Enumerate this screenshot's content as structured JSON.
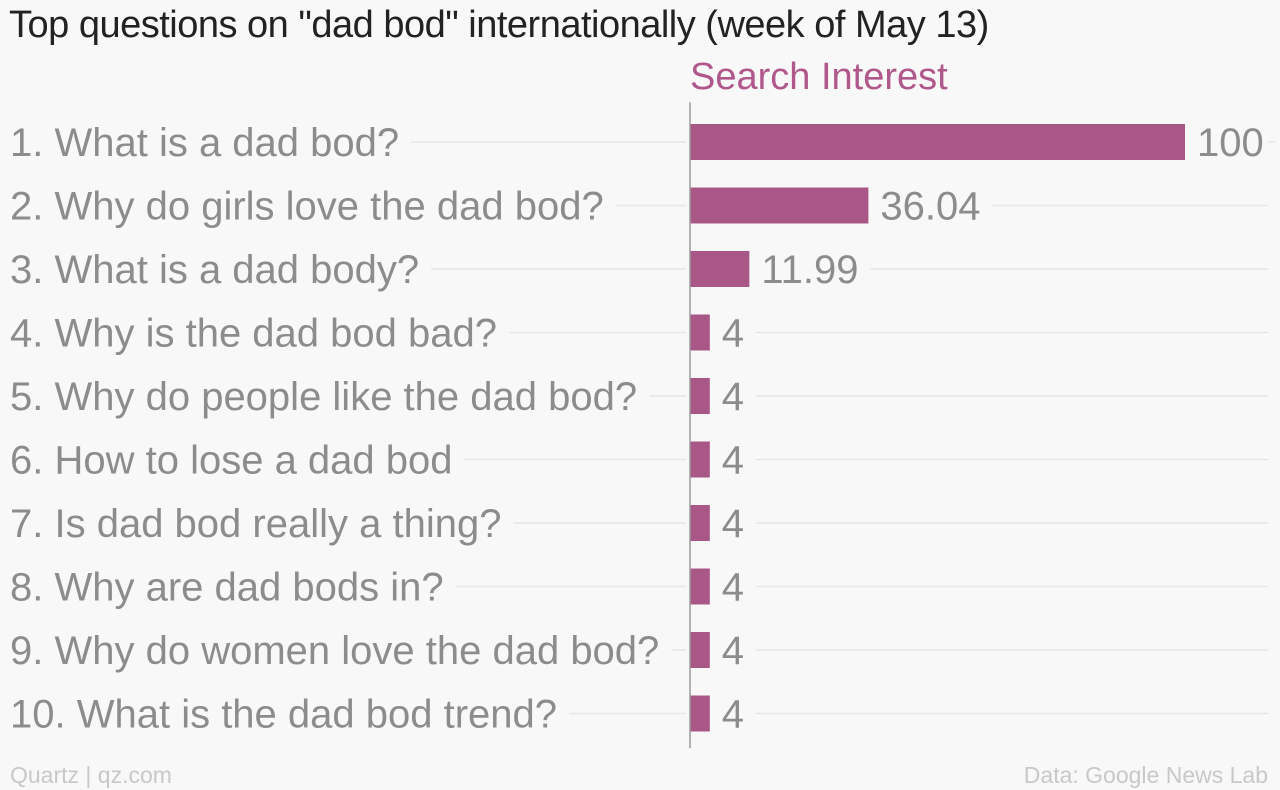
{
  "title": "Top questions on \"dad bod\" internationally (week of May 13)",
  "footer": {
    "source_left": "Quartz | qz.com",
    "source_right": "Data: Google News Lab"
  },
  "colors": {
    "bar": "#a95786",
    "header": "#b0588c",
    "gridline": "#e6e6e6",
    "axis": "#9a9a9a",
    "label": "#8c8c8c",
    "title": "#222222",
    "background": "#f8f8f8"
  },
  "chart_data": {
    "type": "bar",
    "orientation": "horizontal",
    "series": [
      {
        "name": "Search Interest",
        "values": [
          100,
          36.04,
          11.99,
          4,
          4,
          4,
          4,
          4,
          4,
          4
        ],
        "value_labels": [
          "100",
          "36.04",
          "11.99",
          "4",
          "4",
          "4",
          "4",
          "4",
          "4",
          "4"
        ]
      }
    ],
    "categories": [
      "1. What is a dad bod?",
      "2. Why do girls love the dad bod?",
      "3. What is a dad body?",
      "4. Why is the dad bod bad?",
      "5. Why do people like the dad bod?",
      "6. How to lose a dad bod",
      "7. Is dad bod really a thing?",
      "8. Why are dad bods in?",
      "9. Why do women love the dad bod?",
      "10. What is the dad bod trend?"
    ],
    "xlim": [
      0,
      100
    ],
    "grid": true,
    "legend": "top"
  }
}
